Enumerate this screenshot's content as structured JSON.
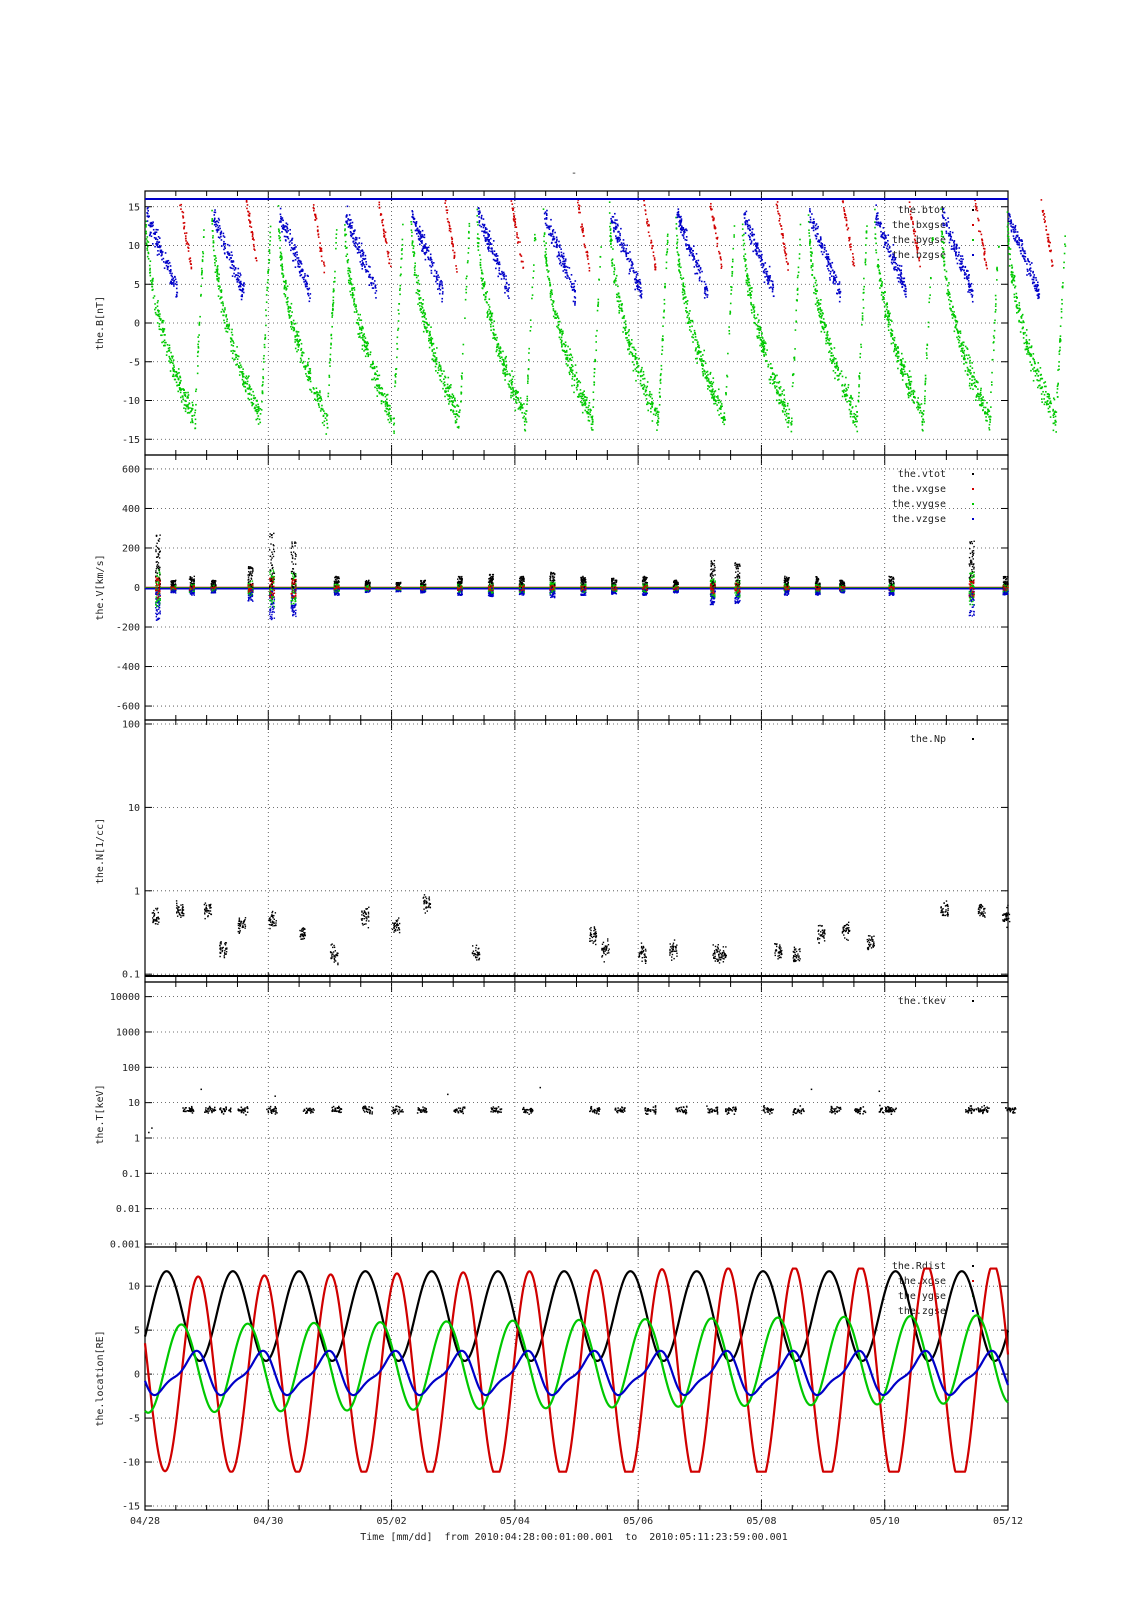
{
  "figure": {
    "top_mark": "-",
    "xlabel": "Time [mm/dd]  from 2010:04:28:00:01:00.001  to  2010:05:11:23:59:00.001",
    "x_tick_labels": [
      "04/28",
      "04/30",
      "05/02",
      "05/04",
      "05/06",
      "05/08",
      "05/10",
      "05/12"
    ],
    "x_range_days": [
      0,
      14
    ],
    "x_major_step_days": 2,
    "x_minor_step_days": 0.5,
    "colors": {
      "black": "#000000",
      "red": "#d00000",
      "green": "#00c800",
      "blue": "#0000c8",
      "grid": "#444444"
    }
  },
  "chart_data": [
    {
      "type": "scatter",
      "id": "B",
      "ylabel": "the.B[nT]",
      "ylim": [
        -16,
        16
      ],
      "y_ticks": [
        15,
        10,
        5,
        0,
        -5,
        -10,
        -15
      ],
      "legend": [
        "the.btot",
        "the.bxgse",
        "the.bygse",
        "the.bzgse"
      ],
      "legend_visible": [
        "the.btot",
        "the.bxgse",
        "the.bygse",
        "the.bzgse"
      ],
      "series_colors": [
        "#000000",
        "#d00000",
        "#00c800",
        "#0000c8"
      ],
      "grid": true
    },
    {
      "type": "scatter",
      "id": "V",
      "ylabel": "the.V[km/s]",
      "ylim": [
        -620,
        620
      ],
      "y_ticks": [
        600,
        400,
        200,
        0,
        -200,
        -400,
        -600
      ],
      "legend": [
        "the.vtot",
        "the.vxgse",
        "the.vygse",
        "the.vzgse"
      ],
      "series_colors": [
        "#000000",
        "#d00000",
        "#00c800",
        "#0000c8"
      ],
      "grid": true
    },
    {
      "type": "scatter",
      "id": "N",
      "ylabel": "the.N[1/cc]",
      "y_scale": "log",
      "ylim": [
        0.09,
        100
      ],
      "y_ticks": [
        100,
        10,
        1,
        0.1
      ],
      "y_tick_labels": [
        "100",
        "10",
        "1",
        "0.1"
      ],
      "legend": [
        "the.Np"
      ],
      "series_colors": [
        "#000000"
      ],
      "grid": true
    },
    {
      "type": "scatter",
      "id": "T",
      "ylabel": "the.T[keV]",
      "y_scale": "log",
      "ylim": [
        0.001,
        20000
      ],
      "y_ticks": [
        10000,
        1000,
        100,
        10,
        1,
        0.1,
        0.01,
        0.001
      ],
      "y_tick_labels": [
        "10000",
        "1000",
        "100",
        "10",
        "1",
        "0.1",
        "0.01",
        "0.001"
      ],
      "legend": [
        "the.tkev"
      ],
      "series_colors": [
        "#000000"
      ],
      "grid": true
    },
    {
      "type": "line",
      "id": "L",
      "ylabel": "the.location[RE]",
      "ylim": [
        -15,
        14
      ],
      "y_ticks": [
        10,
        5,
        0,
        -5,
        -10,
        -15
      ],
      "legend": [
        "the.Rdist",
        "the.xgse",
        "the.ygse",
        "the.zgse"
      ],
      "series_colors": [
        "#000000",
        "#d00000",
        "#00c800",
        "#0000c8"
      ],
      "orbit_period_days": 1.075,
      "apogee_RE": 11.7,
      "perigee_RE": 1.5,
      "grid": true
    }
  ]
}
